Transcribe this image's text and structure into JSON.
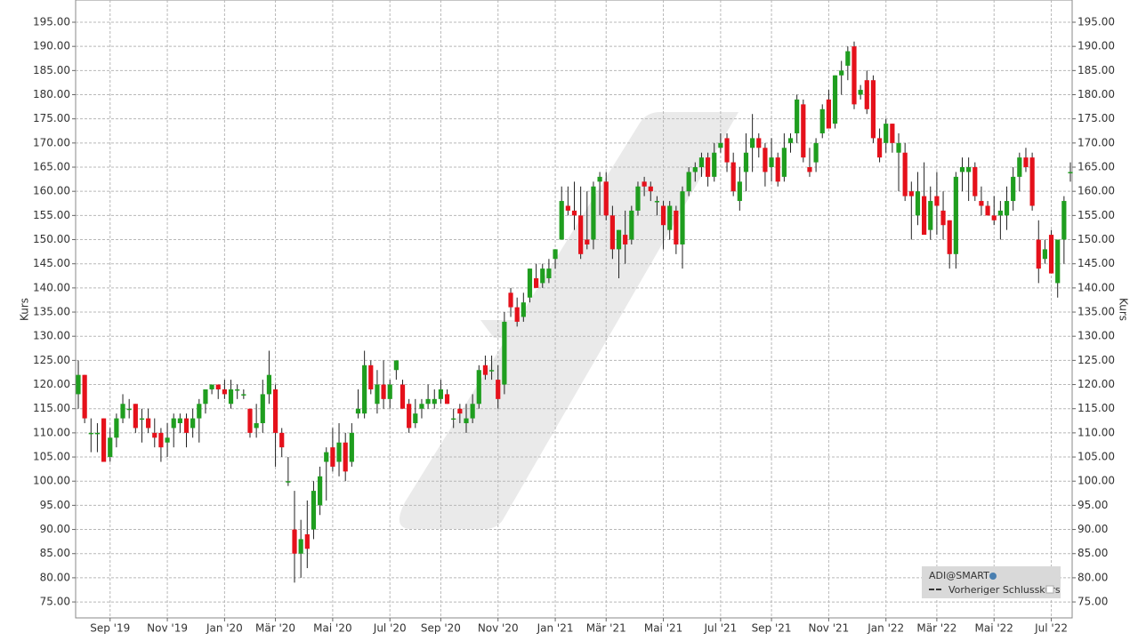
{
  "chart_data": {
    "type": "candlestick",
    "y_label": "Kurs",
    "legend": {
      "instrument": "ADI@SMART",
      "line": "Vorheriger Schlusskurs",
      "position": "lower-right"
    },
    "up_color": "#1f9e1f",
    "down_color": "#e5111b",
    "grid": true,
    "ylim": [
      71.7,
      199.6
    ],
    "yticks": [
      {
        "value": 75,
        "label": "75.00"
      },
      {
        "value": 80,
        "label": "80.00"
      },
      {
        "value": 85,
        "label": "85.00"
      },
      {
        "value": 90,
        "label": "90.00"
      },
      {
        "value": 95,
        "label": "95.00"
      },
      {
        "value": 100,
        "label": "100.00"
      },
      {
        "value": 105,
        "label": "105.00"
      },
      {
        "value": 110,
        "label": "110.00"
      },
      {
        "value": 115,
        "label": "115.00"
      },
      {
        "value": 120,
        "label": "120.00"
      },
      {
        "value": 125,
        "label": "125.00"
      },
      {
        "value": 130,
        "label": "130.00"
      },
      {
        "value": 135,
        "label": "135.00"
      },
      {
        "value": 140,
        "label": "140.00"
      },
      {
        "value": 145,
        "label": "145.00"
      },
      {
        "value": 150,
        "label": "150.00"
      },
      {
        "value": 155,
        "label": "155.00"
      },
      {
        "value": 160,
        "label": "160.00"
      },
      {
        "value": 165,
        "label": "165.00"
      },
      {
        "value": 170,
        "label": "170.00"
      },
      {
        "value": 175,
        "label": "175.00"
      },
      {
        "value": 180,
        "label": "180.00"
      },
      {
        "value": 185,
        "label": "185.00"
      },
      {
        "value": 190,
        "label": "190.00"
      },
      {
        "value": 195,
        "label": "195.00"
      }
    ],
    "categories": [
      null,
      null,
      null,
      null,
      null,
      "Sep '19",
      null,
      null,
      null,
      null,
      null,
      null,
      null,
      null,
      "Nov '19",
      null,
      null,
      null,
      null,
      null,
      null,
      null,
      null,
      "Jan '20",
      null,
      null,
      null,
      null,
      null,
      null,
      null,
      "Mär '20",
      null,
      null,
      null,
      null,
      null,
      null,
      null,
      null,
      "Mai '20",
      null,
      null,
      null,
      null,
      null,
      null,
      null,
      null,
      "Jul '20",
      null,
      null,
      null,
      null,
      null,
      null,
      null,
      "Sep '20",
      null,
      null,
      null,
      null,
      null,
      null,
      null,
      null,
      "Nov '20",
      null,
      null,
      null,
      null,
      null,
      null,
      null,
      null,
      "Jan '21",
      null,
      null,
      null,
      null,
      null,
      null,
      null,
      "Mär '21",
      null,
      null,
      null,
      null,
      null,
      null,
      null,
      null,
      "Mai '21",
      null,
      null,
      null,
      null,
      null,
      null,
      null,
      null,
      "Jul '21",
      null,
      null,
      null,
      null,
      null,
      null,
      null,
      "Sep '21",
      null,
      null,
      null,
      null,
      null,
      null,
      null,
      null,
      "Nov '21",
      null,
      null,
      null,
      null,
      null,
      null,
      null,
      null,
      "Jan '22",
      null,
      null,
      null,
      null,
      null,
      null,
      null,
      "Mär '22",
      null,
      null,
      null,
      null,
      null,
      null,
      null,
      null,
      "Mai '22",
      null,
      null,
      null,
      null,
      null,
      null,
      null,
      null,
      "Jul '22",
      null,
      null,
      null
    ],
    "series": [
      {
        "name": "ADI@SMART",
        "values": [
          [
            118,
            125,
            115,
            122
          ],
          [
            122,
            122,
            112,
            113
          ],
          [
            110,
            113,
            106,
            110
          ],
          [
            110,
            112,
            106,
            110
          ],
          [
            113,
            113,
            104,
            104
          ],
          [
            105,
            111,
            104,
            109
          ],
          [
            109,
            114,
            107,
            113
          ],
          [
            113,
            118,
            112,
            116
          ],
          [
            115,
            117,
            113,
            115
          ],
          [
            116,
            116,
            110,
            111
          ],
          [
            113,
            115,
            108,
            113
          ],
          [
            113,
            115,
            110,
            111
          ],
          [
            110,
            113,
            107,
            109
          ],
          [
            110,
            111,
            104,
            107
          ],
          [
            108,
            112,
            105,
            109
          ],
          [
            111,
            114,
            107,
            113
          ],
          [
            112,
            114,
            110,
            113
          ],
          [
            113,
            114,
            107,
            110
          ],
          [
            111,
            115,
            109,
            113
          ],
          [
            113,
            117,
            108,
            116
          ],
          [
            116,
            119,
            114,
            119
          ],
          [
            119,
            120,
            118,
            120
          ],
          [
            120,
            120,
            117,
            119
          ],
          [
            119,
            121,
            117,
            118
          ],
          [
            116,
            121,
            115,
            119
          ],
          [
            119,
            120,
            117,
            119
          ],
          [
            118,
            119,
            117,
            118
          ],
          [
            115,
            115,
            109,
            110
          ],
          [
            111,
            116,
            109,
            112
          ],
          [
            112,
            121,
            110,
            118
          ],
          [
            118,
            127,
            116,
            122
          ],
          [
            119,
            120,
            103,
            110
          ],
          [
            110,
            111,
            105,
            107
          ],
          [
            100,
            105,
            99,
            100
          ],
          [
            90,
            98,
            79,
            85
          ],
          [
            85,
            92,
            80,
            88
          ],
          [
            89,
            96,
            82,
            86
          ],
          [
            90,
            100,
            88,
            98
          ],
          [
            95,
            103,
            93,
            101
          ],
          [
            104,
            107,
            96,
            106
          ],
          [
            107,
            111,
            102,
            103
          ],
          [
            104,
            112,
            101,
            108
          ],
          [
            108,
            110,
            100,
            102
          ],
          [
            104,
            112,
            103,
            110
          ],
          [
            114,
            119,
            113,
            115
          ],
          [
            114,
            127,
            113,
            124
          ],
          [
            124,
            125,
            118,
            119
          ],
          [
            116,
            123,
            114,
            120
          ],
          [
            120,
            125,
            115,
            117
          ],
          [
            117,
            121,
            115,
            120
          ],
          [
            123,
            125,
            121,
            125
          ],
          [
            120,
            121,
            115,
            115
          ],
          [
            116,
            117,
            110,
            111
          ],
          [
            112,
            117,
            111,
            114
          ],
          [
            115,
            117,
            113,
            116
          ],
          [
            116,
            120,
            115,
            117
          ],
          [
            116,
            119,
            115,
            117
          ],
          [
            117,
            121,
            116,
            119
          ],
          [
            118,
            119,
            116,
            116
          ],
          [
            113,
            115,
            111,
            113
          ],
          [
            115,
            116,
            112,
            114
          ],
          [
            112,
            116,
            110,
            113
          ],
          [
            113,
            118,
            112,
            116
          ],
          [
            116,
            124,
            115,
            123
          ],
          [
            124,
            126,
            121,
            122
          ],
          [
            123,
            126,
            121,
            123
          ],
          [
            121,
            124,
            115,
            117
          ],
          [
            120,
            135,
            118,
            133
          ],
          [
            139,
            140,
            134,
            136
          ],
          [
            136,
            138,
            132,
            133
          ],
          [
            134,
            139,
            133,
            137
          ],
          [
            138,
            144,
            137,
            144
          ],
          [
            142,
            145,
            140,
            140
          ],
          [
            141,
            145,
            140,
            144
          ],
          [
            142,
            146,
            141,
            144
          ],
          [
            146,
            148,
            144,
            148
          ],
          [
            150,
            161,
            150,
            158
          ],
          [
            157,
            161,
            155,
            156
          ],
          [
            156,
            162,
            152,
            155
          ],
          [
            155,
            161,
            146,
            147
          ],
          [
            150,
            160,
            148,
            149
          ],
          [
            150,
            162,
            148,
            161
          ],
          [
            162,
            164,
            155,
            163
          ],
          [
            162,
            164,
            154,
            155
          ],
          [
            155,
            157,
            146,
            148
          ],
          [
            148,
            152,
            142,
            152
          ],
          [
            151,
            156,
            145,
            149
          ],
          [
            150,
            157,
            149,
            156
          ],
          [
            156,
            162,
            155,
            161
          ],
          [
            162,
            163,
            159,
            161
          ],
          [
            161,
            162,
            158,
            160
          ],
          [
            158,
            159,
            155,
            158
          ],
          [
            157,
            158,
            148,
            153
          ],
          [
            152,
            158,
            150,
            157
          ],
          [
            156,
            157,
            147,
            149
          ],
          [
            149,
            161,
            144,
            160
          ],
          [
            160,
            165,
            159,
            164
          ],
          [
            164,
            166,
            162,
            165
          ],
          [
            165,
            168,
            163,
            167
          ],
          [
            167,
            168,
            161,
            163
          ],
          [
            163,
            170,
            162,
            168
          ],
          [
            169,
            172,
            168,
            170
          ],
          [
            171,
            172,
            164,
            166
          ],
          [
            166,
            168,
            159,
            160
          ],
          [
            158,
            165,
            156,
            162
          ],
          [
            164,
            172,
            160,
            168
          ],
          [
            169,
            176,
            164,
            171
          ],
          [
            171,
            172,
            167,
            169
          ],
          [
            169,
            170,
            161,
            164
          ],
          [
            165,
            171,
            162,
            167
          ],
          [
            167,
            168,
            161,
            162
          ],
          [
            163,
            172,
            162,
            169
          ],
          [
            170,
            172,
            168,
            171
          ],
          [
            172,
            180,
            170,
            179
          ],
          [
            178,
            179,
            166,
            167
          ],
          [
            165,
            169,
            163,
            164
          ],
          [
            166,
            171,
            164,
            170
          ],
          [
            172,
            178,
            171,
            177
          ],
          [
            179,
            181,
            173,
            173
          ],
          [
            174,
            184,
            173,
            184
          ],
          [
            184,
            187,
            180,
            185
          ],
          [
            186,
            190,
            183,
            189
          ],
          [
            190,
            191,
            177,
            178
          ],
          [
            180,
            182,
            179,
            181
          ],
          [
            183,
            185,
            176,
            177
          ],
          [
            183,
            184,
            170,
            171
          ],
          [
            171,
            173,
            166,
            167
          ],
          [
            170,
            175,
            168,
            174
          ],
          [
            174,
            174,
            168,
            170
          ],
          [
            168,
            172,
            160,
            170
          ],
          [
            168,
            170,
            158,
            159
          ],
          [
            160,
            162,
            150,
            159
          ],
          [
            155,
            164,
            153,
            160
          ],
          [
            159,
            166,
            152,
            151
          ],
          [
            152,
            161,
            150,
            158
          ],
          [
            159,
            164,
            151,
            157
          ],
          [
            156,
            160,
            150,
            153
          ],
          [
            154,
            154,
            144,
            147
          ],
          [
            147,
            164,
            144,
            163
          ],
          [
            164,
            167,
            160,
            165
          ],
          [
            164,
            167,
            158,
            165
          ],
          [
            165,
            166,
            158,
            159
          ],
          [
            158,
            161,
            155,
            157
          ],
          [
            157,
            158,
            155,
            155
          ],
          [
            155,
            159,
            153,
            154
          ],
          [
            155,
            158,
            150,
            156
          ],
          [
            155,
            161,
            152,
            158
          ],
          [
            158,
            165,
            156,
            163
          ],
          [
            163,
            168,
            160,
            167
          ],
          [
            167,
            169,
            164,
            165
          ],
          [
            167,
            168,
            156,
            157
          ],
          [
            150,
            154,
            141,
            144
          ],
          [
            146,
            150,
            145,
            148
          ],
          [
            151,
            152,
            143,
            143
          ],
          [
            141,
            150,
            138,
            150
          ],
          [
            150,
            159,
            145,
            158
          ],
          [
            164,
            166,
            162,
            164
          ]
        ]
      }
    ]
  }
}
